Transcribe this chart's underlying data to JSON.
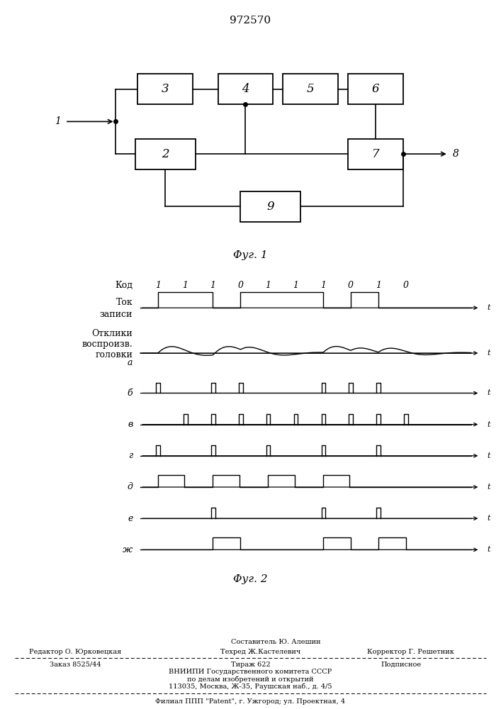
{
  "patent_number": "972570",
  "fig1_caption": "Φуг. 1",
  "fig2_caption": "Φуг. 2",
  "input_label": "1",
  "output_label": "8",
  "code_bits": [
    "1",
    "1",
    "1",
    "0",
    "1",
    "1",
    "1",
    "0",
    "1",
    "0"
  ],
  "label_kod": "Код",
  "label_tok_line1": "Ток",
  "label_tok_line2": "записи",
  "label_otkliki_line1": "Отклики",
  "label_otkliki_line2": "воспроизв.",
  "label_otkliki_line3": "головки",
  "row_a": "а",
  "row_b": "б",
  "row_v": "в",
  "row_g": "г",
  "row_d": "д",
  "row_e": "е",
  "row_zh": "ж",
  "bottom_sostavitel": "Составитель Ю. Алешин",
  "bottom_redaktor": "Редактор О. Юрковецкая",
  "bottom_tehred": "Техред Ж.Кастелевич",
  "bottom_korrektor": "Корректор Г. Решетник",
  "bottom_zakaz": "Заказ 8525/44",
  "bottom_tirazh": "Тираж 622",
  "bottom_podpisnoe": "Подписное",
  "bottom_vniip1": "ВНИИПИ Государственного комитета СССР",
  "bottom_vniip2": "по делам изобретений и открытий",
  "bottom_address": "113035, Москва, Ж-35, Раушская наб., д. 4/5",
  "bottom_filial": "Филиал ППП \"Patent\", г. Ужгород; ул. Проектная, 4"
}
